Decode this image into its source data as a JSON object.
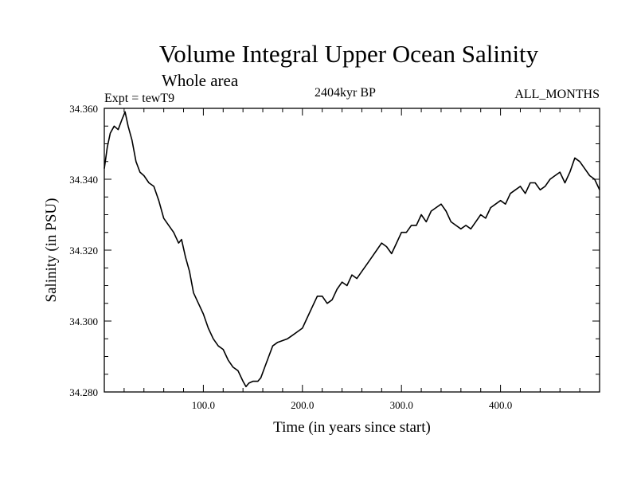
{
  "chart_data": {
    "type": "line",
    "title": "Volume Integral Upper Ocean Salinity",
    "subtitle": "Whole area",
    "annotations": {
      "experiment": "Expt = tewT9",
      "period": "2404kyr BP",
      "months": "ALL_MONTHS"
    },
    "xlabel": "Time (in years since start)",
    "ylabel": "Salinity (in PSU)",
    "xlim": [
      0,
      500
    ],
    "ylim": [
      34.28,
      34.36
    ],
    "x_ticks": [
      100,
      200,
      300,
      400
    ],
    "x_tick_labels": [
      "100.0",
      "200.0",
      "300.0",
      "400.0"
    ],
    "y_ticks": [
      34.28,
      34.3,
      34.32,
      34.34,
      34.36
    ],
    "y_tick_labels": [
      "34.280",
      "34.300",
      "34.320",
      "34.340",
      "34.360"
    ],
    "series": [
      {
        "name": "Salinity",
        "color": "#000000",
        "x": [
          0,
          3,
          6,
          10,
          14,
          18,
          21,
          24,
          28,
          32,
          36,
          40,
          45,
          50,
          55,
          60,
          65,
          70,
          75,
          78,
          82,
          86,
          90,
          95,
          100,
          105,
          110,
          115,
          120,
          125,
          130,
          135,
          140,
          143,
          146,
          150,
          155,
          158,
          162,
          166,
          170,
          175,
          180,
          185,
          190,
          195,
          200,
          205,
          210,
          215,
          220,
          225,
          230,
          235,
          240,
          245,
          250,
          255,
          260,
          265,
          270,
          275,
          280,
          285,
          290,
          295,
          300,
          305,
          310,
          315,
          320,
          325,
          330,
          335,
          340,
          345,
          350,
          355,
          360,
          365,
          370,
          375,
          380,
          385,
          390,
          395,
          400,
          405,
          410,
          415,
          420,
          425,
          430,
          435,
          440,
          445,
          450,
          455,
          460,
          465,
          470,
          475,
          480,
          485,
          490,
          495,
          500
        ],
        "values": [
          34.343,
          34.349,
          34.353,
          34.355,
          34.354,
          34.357,
          34.359,
          34.355,
          34.351,
          34.345,
          34.342,
          34.341,
          34.339,
          34.338,
          34.334,
          34.329,
          34.327,
          34.325,
          34.322,
          34.323,
          34.318,
          34.314,
          34.308,
          34.305,
          34.302,
          34.298,
          34.295,
          34.293,
          34.292,
          34.289,
          34.287,
          34.286,
          34.283,
          34.2815,
          34.2825,
          34.283,
          34.283,
          34.284,
          34.287,
          34.29,
          34.293,
          34.294,
          34.2945,
          34.295,
          34.296,
          34.297,
          34.298,
          34.301,
          34.304,
          34.307,
          34.307,
          34.305,
          34.306,
          34.309,
          34.311,
          34.31,
          34.313,
          34.312,
          34.314,
          34.316,
          34.318,
          34.32,
          34.322,
          34.321,
          34.319,
          34.322,
          34.325,
          34.325,
          34.327,
          34.327,
          34.33,
          34.328,
          34.331,
          34.332,
          34.333,
          34.331,
          34.328,
          34.327,
          34.326,
          34.327,
          34.326,
          34.328,
          34.33,
          34.329,
          34.332,
          34.333,
          34.334,
          34.333,
          34.336,
          34.337,
          34.338,
          34.336,
          34.339,
          34.339,
          34.337,
          34.338,
          34.34,
          34.341,
          34.342,
          34.339,
          34.342,
          34.346,
          34.345,
          34.343,
          34.341,
          34.34,
          34.337
        ]
      }
    ]
  }
}
